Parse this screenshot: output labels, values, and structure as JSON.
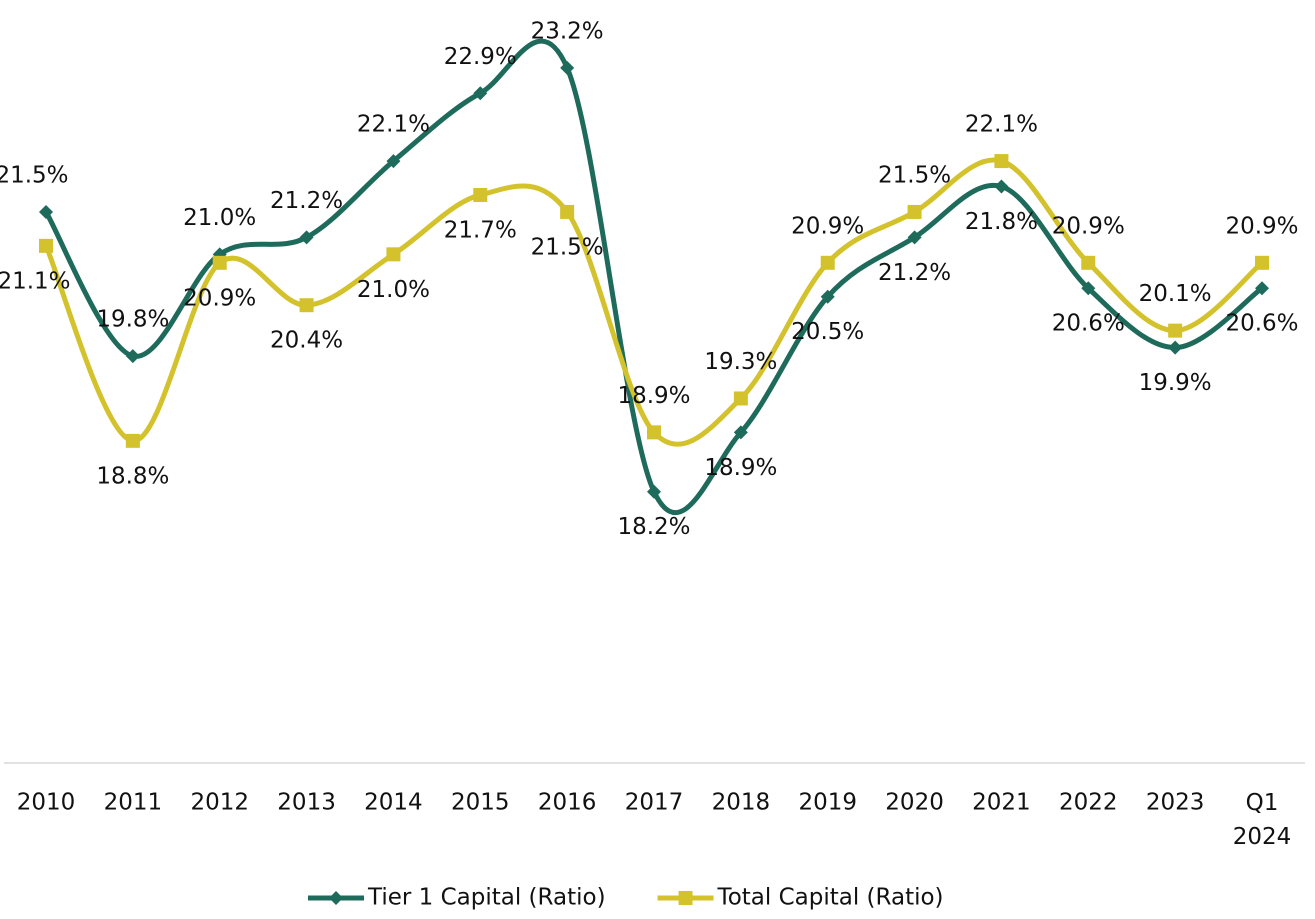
{
  "chart_data": {
    "type": "line",
    "categories": [
      "2010",
      "2011",
      "2012",
      "2013",
      "2014",
      "2015",
      "2016",
      "2017",
      "2018",
      "2019",
      "2020",
      "2021",
      "2022",
      "2023",
      "Q1\n2024"
    ],
    "ylim": [
      15,
      24
    ],
    "legend": "bottom",
    "series": [
      {
        "name": "Tier 1 Capital (Ratio)",
        "color": "#1e6b5c",
        "marker": "diamond",
        "values": [
          21.5,
          19.8,
          21.0,
          21.2,
          22.1,
          22.9,
          23.2,
          18.2,
          18.9,
          20.5,
          21.2,
          21.8,
          20.6,
          19.9,
          20.6
        ],
        "value_labels": [
          "21.5%",
          "19.8%",
          "21.0%",
          "21.2%",
          "22.1%",
          "22.9%",
          "23.2%",
          "18.2%",
          "18.9%",
          "20.5%",
          "21.2%",
          "21.8%",
          "20.6%",
          "19.9%",
          "20.6%"
        ]
      },
      {
        "name": "Total Capital (Ratio)",
        "color": "#d4c22c",
        "marker": "square",
        "values": [
          21.1,
          18.8,
          20.9,
          20.4,
          21.0,
          21.7,
          21.5,
          18.9,
          19.3,
          20.9,
          21.5,
          22.1,
          20.9,
          20.1,
          20.9
        ],
        "value_labels": [
          "21.1%",
          "18.8%",
          "20.9%",
          "20.4%",
          "21.0%",
          "21.7%",
          "21.5%",
          "18.9%",
          "19.3%",
          "20.9%",
          "21.5%",
          "22.1%",
          "20.9%",
          "20.1%",
          "20.9%"
        ]
      }
    ]
  }
}
